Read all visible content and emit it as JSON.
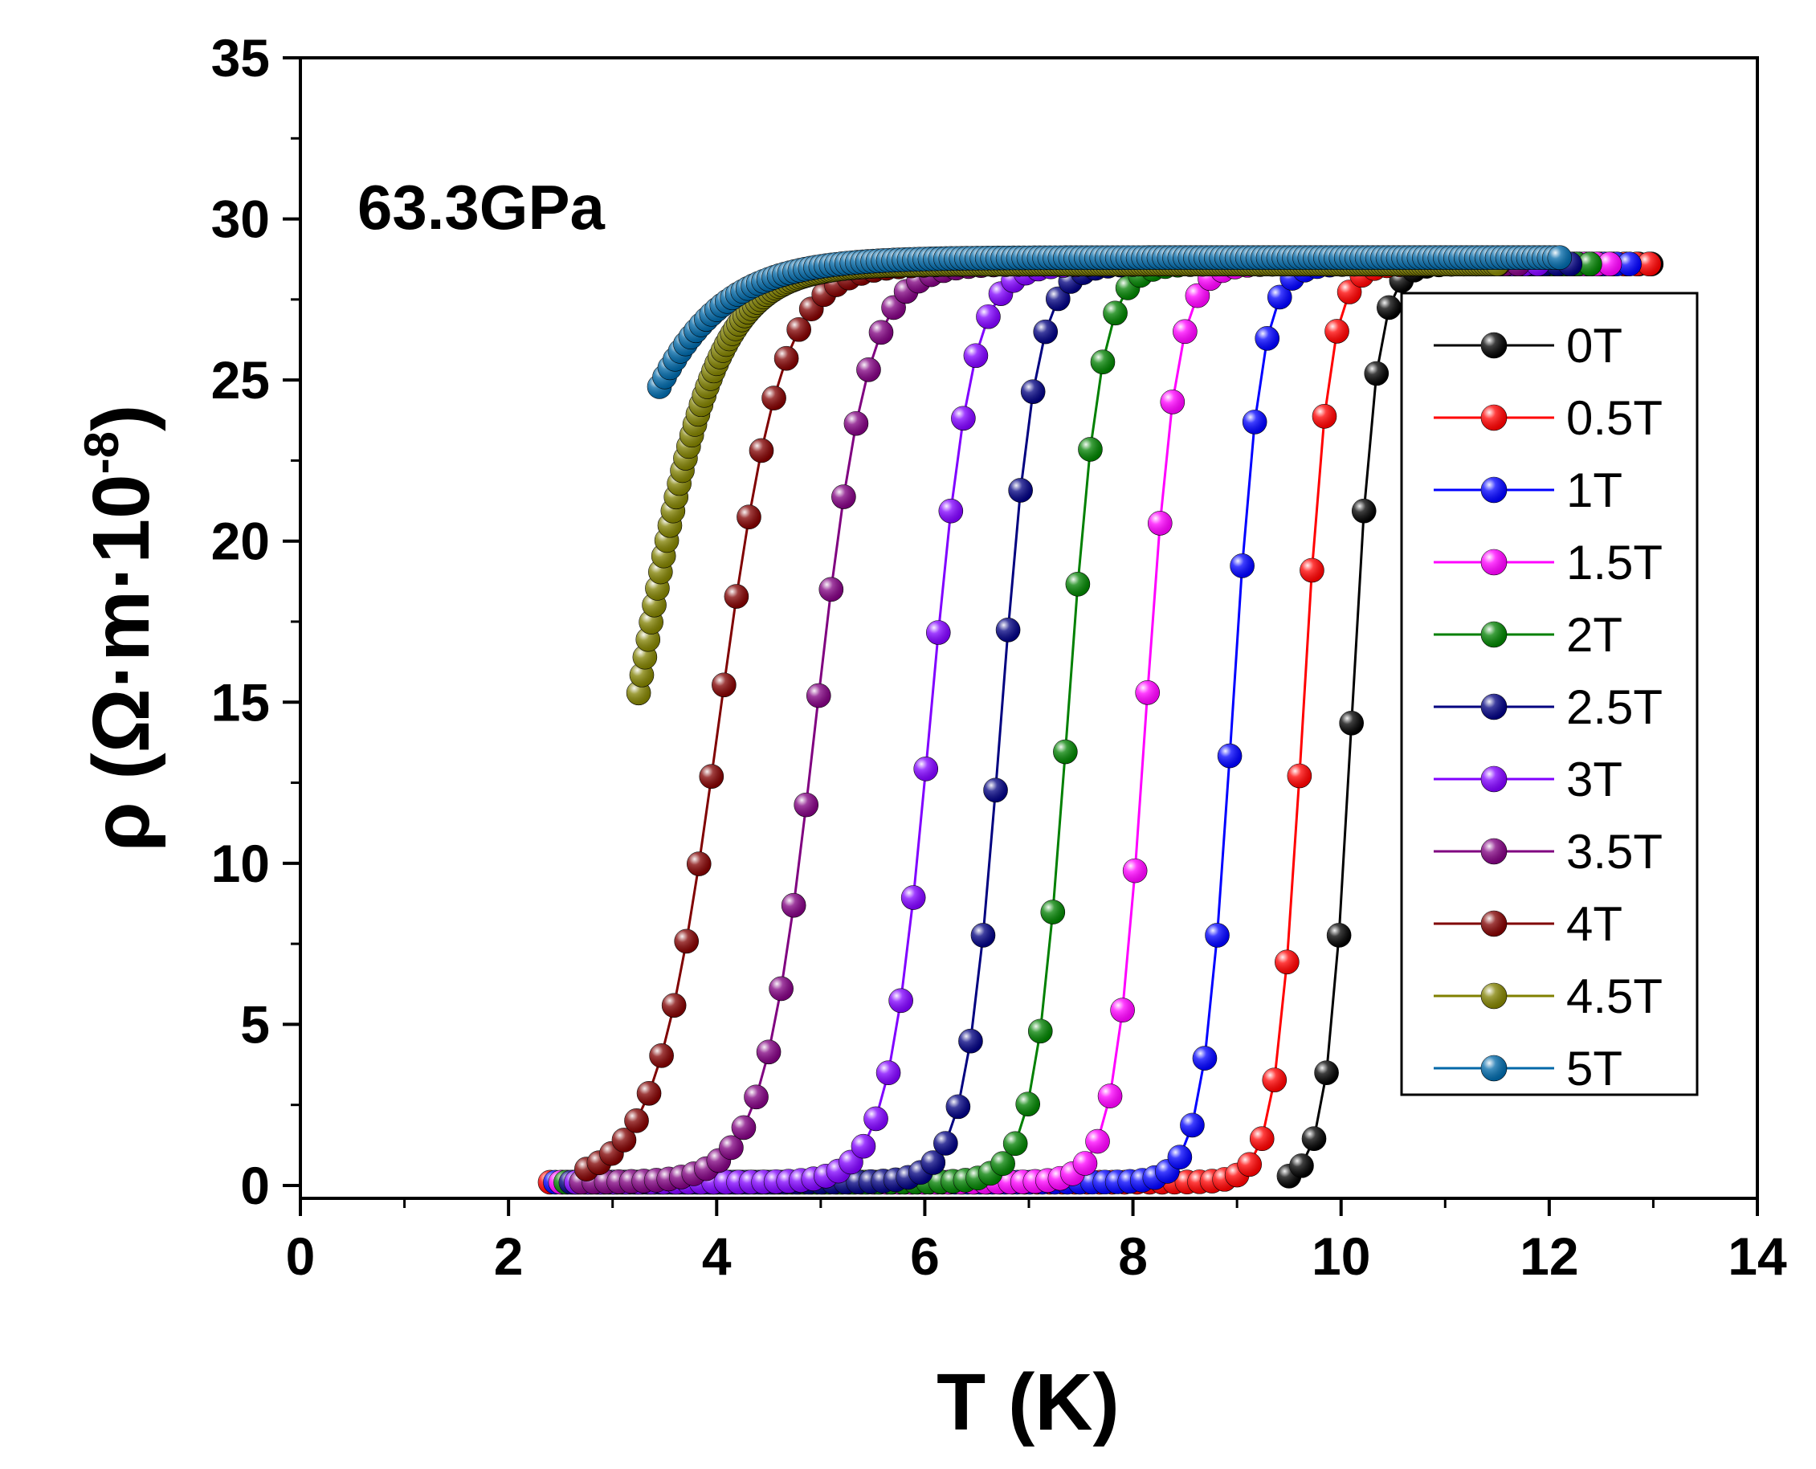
{
  "chart_data": {
    "type": "line",
    "title": "",
    "annotation": "63.3GPa",
    "xlabel": "T (K)",
    "ylabel": {
      "prefix": "ρ (Ω·m·10",
      "exponent": "-8",
      "suffix": ")"
    },
    "xlim": [
      0,
      14
    ],
    "ylim": [
      -0.4,
      35
    ],
    "x_ticks": [
      "0",
      "2",
      "4",
      "6",
      "8",
      "10",
      "12",
      "14"
    ],
    "y_ticks": [
      "0",
      "5",
      "10",
      "15",
      "20",
      "25",
      "30",
      "35"
    ],
    "legend_position": "right",
    "series": [
      {
        "name": "0T",
        "color": "#000000",
        "tmin": 9.5,
        "tmax": 13.0,
        "tc": 10.1,
        "width": 0.12,
        "step": 0.12,
        "rn": 28.6
      },
      {
        "name": "0.5T",
        "color": "#ff0000",
        "tmin": 2.4,
        "tmax": 13.0,
        "tc": 9.63,
        "width": 0.13,
        "step": 0.12,
        "rn": 28.6
      },
      {
        "name": "1T",
        "color": "#0000ff",
        "tmin": 2.45,
        "tmax": 12.8,
        "tc": 8.95,
        "width": 0.14,
        "step": 0.12,
        "rn": 28.6
      },
      {
        "name": "1.5T",
        "color": "#ff00ff",
        "tmin": 2.5,
        "tmax": 12.6,
        "tc": 8.12,
        "width": 0.15,
        "step": 0.12,
        "rn": 28.6
      },
      {
        "name": "2T",
        "color": "#008000",
        "tmin": 2.55,
        "tmax": 12.4,
        "tc": 7.37,
        "width": 0.16,
        "step": 0.12,
        "rn": 28.6
      },
      {
        "name": "2.5T",
        "color": "#000080",
        "tmin": 2.6,
        "tmax": 12.2,
        "tc": 6.73,
        "width": 0.17,
        "step": 0.12,
        "rn": 28.6
      },
      {
        "name": "3T",
        "color": "#8000ff",
        "tmin": 2.65,
        "tmax": 12.0,
        "tc": 6.05,
        "width": 0.2,
        "step": 0.12,
        "rn": 28.6
      },
      {
        "name": "3.5T",
        "color": "#800080",
        "tmin": 2.7,
        "tmax": 11.8,
        "tc": 4.95,
        "width": 0.25,
        "step": 0.12,
        "rn": 28.6
      },
      {
        "name": "4T",
        "color": "#800000",
        "tmin": 2.75,
        "tmax": 11.6,
        "tc": 4.02,
        "width": 0.3,
        "step": 0.12,
        "rn": 28.6
      },
      {
        "name": "4.5T",
        "color": "#808000",
        "tmin": 3.25,
        "tmax": 11.5,
        "tc": 3.2,
        "width": 0.38,
        "step": 0.03,
        "rn": 28.6
      },
      {
        "name": "5T",
        "color": "#0068a8",
        "tmin": 3.45,
        "tmax": 12.1,
        "tc": 2.45,
        "width": 0.55,
        "step": 0.05,
        "rn": 28.8
      }
    ]
  }
}
